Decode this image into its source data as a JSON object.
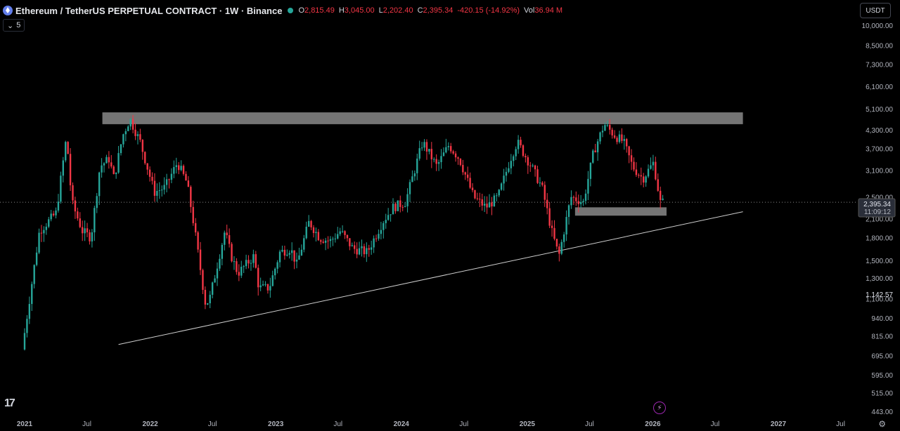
{
  "header": {
    "title": "Ethereum / TetherUS PERPETUAL CONTRACT · 1W · Binance",
    "ohlc": [
      {
        "label": "O",
        "value": "2,815.49"
      },
      {
        "label": "H",
        "value": "3,045.00"
      },
      {
        "label": "L",
        "value": "2,202.40"
      },
      {
        "label": "C",
        "value": "2,395.34"
      },
      {
        "label": "",
        "value": "-420.15 (-14.92%)"
      },
      {
        "label": "Vol",
        "value": "36.94 M"
      }
    ],
    "indicator_count": "5",
    "currency": "USDT"
  },
  "price_tag": {
    "price": "2,395.34",
    "countdown": "11:09:12"
  },
  "colors": {
    "up": "#26a69a",
    "down": "#f23645",
    "zone": "#7a7a7a",
    "axis_text": "#b2b5be"
  },
  "chart_data": {
    "type": "candlestick",
    "title": "Ethereum / TetherUS PERPETUAL CONTRACT · 1W · Binance",
    "interval": "1W",
    "yscale": "log",
    "ylim": [
      420,
      12000
    ],
    "xlim": [
      "2021-01-01",
      "2027-10-01"
    ],
    "y_ticks": [
      "10,000.00",
      "8,500.00",
      "7,300.00",
      "6,100.00",
      "5,100.00",
      "4,300.00",
      "3,700.00",
      "3,100.00",
      "2,500.00",
      "2,100.00",
      "1,800.00",
      "1,500.00",
      "1,300.00",
      "1,100.00",
      "940.00",
      "815.00",
      "695.00",
      "595.00",
      "515.00",
      "443.00"
    ],
    "y_tick_values": [
      10000,
      8500,
      7300,
      6100,
      5100,
      4300,
      3700,
      3100,
      2500,
      2100,
      1800,
      1500,
      1300,
      1100,
      940,
      815,
      695,
      595,
      515,
      443
    ],
    "x_ticks": [
      {
        "label": "2021",
        "date": "2021-01-01"
      },
      {
        "label": "Jul",
        "date": "2021-07-01"
      },
      {
        "label": "2022",
        "date": "2022-01-01"
      },
      {
        "label": "Jul",
        "date": "2022-07-01"
      },
      {
        "label": "2023",
        "date": "2023-01-01"
      },
      {
        "label": "Jul",
        "date": "2023-07-01"
      },
      {
        "label": "2024",
        "date": "2024-01-01"
      },
      {
        "label": "Jul",
        "date": "2024-07-01"
      },
      {
        "label": "2025",
        "date": "2025-01-01"
      },
      {
        "label": "Jul",
        "date": "2025-07-01"
      },
      {
        "label": "2026",
        "date": "2026-01-01"
      },
      {
        "label": "Jul",
        "date": "2026-07-01"
      },
      {
        "label": "2027",
        "date": "2027-01-01"
      },
      {
        "label": "Jul",
        "date": "2027-07-01"
      }
    ],
    "last_price": 2395.34,
    "extra_axis_label": {
      "text": "1,142.57",
      "value": 1142.57
    },
    "resistance_zone": {
      "x": [
        "2021-08-15",
        "2026-09-20"
      ],
      "y": [
        4500,
        4950
      ]
    },
    "support_zone": {
      "x": [
        "2025-05-20",
        "2026-02-10"
      ],
      "y": [
        2150,
        2300
      ]
    },
    "trendline": {
      "x": [
        "2021-10-01",
        "2026-09-20"
      ],
      "y": [
        760,
        2220
      ]
    },
    "price_path": [
      [
        "2021-01-01",
        730
      ],
      [
        "2021-02-20",
        1900
      ],
      [
        "2021-04-10",
        2200
      ],
      [
        "2021-05-10",
        4100
      ],
      [
        "2021-05-25",
        2400
      ],
      [
        "2021-06-25",
        1900
      ],
      [
        "2021-07-20",
        1800
      ],
      [
        "2021-08-15",
        3200
      ],
      [
        "2021-09-10",
        3400
      ],
      [
        "2021-09-25",
        2900
      ],
      [
        "2021-10-20",
        4100
      ],
      [
        "2021-11-10",
        4700
      ],
      [
        "2021-12-10",
        3900
      ],
      [
        "2022-01-20",
        2600
      ],
      [
        "2022-02-20",
        2700
      ],
      [
        "2022-03-28",
        3300
      ],
      [
        "2022-04-25",
        2800
      ],
      [
        "2022-05-15",
        2000
      ],
      [
        "2022-06-18",
        1050
      ],
      [
        "2022-06-30",
        1100
      ],
      [
        "2022-08-13",
        1900
      ],
      [
        "2022-09-01",
        1550
      ],
      [
        "2022-09-20",
        1350
      ],
      [
        "2022-11-05",
        1550
      ],
      [
        "2022-11-20",
        1200
      ],
      [
        "2022-12-20",
        1200
      ],
      [
        "2023-01-20",
        1600
      ],
      [
        "2023-02-20",
        1650
      ],
      [
        "2023-03-10",
        1450
      ],
      [
        "2023-04-15",
        2050
      ],
      [
        "2023-05-15",
        1800
      ],
      [
        "2023-06-15",
        1750
      ],
      [
        "2023-07-15",
        1900
      ],
      [
        "2023-08-20",
        1650
      ],
      [
        "2023-10-01",
        1600
      ],
      [
        "2023-11-15",
        2050
      ],
      [
        "2023-12-15",
        2300
      ],
      [
        "2024-01-20",
        2400
      ],
      [
        "2024-03-10",
        3900
      ],
      [
        "2024-04-20",
        3200
      ],
      [
        "2024-05-25",
        3800
      ],
      [
        "2024-06-25",
        3400
      ],
      [
        "2024-08-05",
        2500
      ],
      [
        "2024-09-10",
        2300
      ],
      [
        "2024-10-15",
        2500
      ],
      [
        "2024-11-20",
        3400
      ],
      [
        "2024-12-10",
        3900
      ],
      [
        "2025-01-20",
        3200
      ],
      [
        "2025-02-20",
        2700
      ],
      [
        "2025-03-20",
        1900
      ],
      [
        "2025-04-10",
        1550
      ],
      [
        "2025-05-15",
        2500
      ],
      [
        "2025-06-20",
        2400
      ],
      [
        "2025-07-20",
        3600
      ],
      [
        "2025-08-20",
        4500
      ],
      [
        "2025-09-20",
        4100
      ],
      [
        "2025-10-15",
        3900
      ],
      [
        "2025-11-10",
        3200
      ],
      [
        "2025-12-10",
        2900
      ],
      [
        "2026-01-10",
        3300
      ],
      [
        "2026-01-30",
        2395
      ]
    ]
  }
}
